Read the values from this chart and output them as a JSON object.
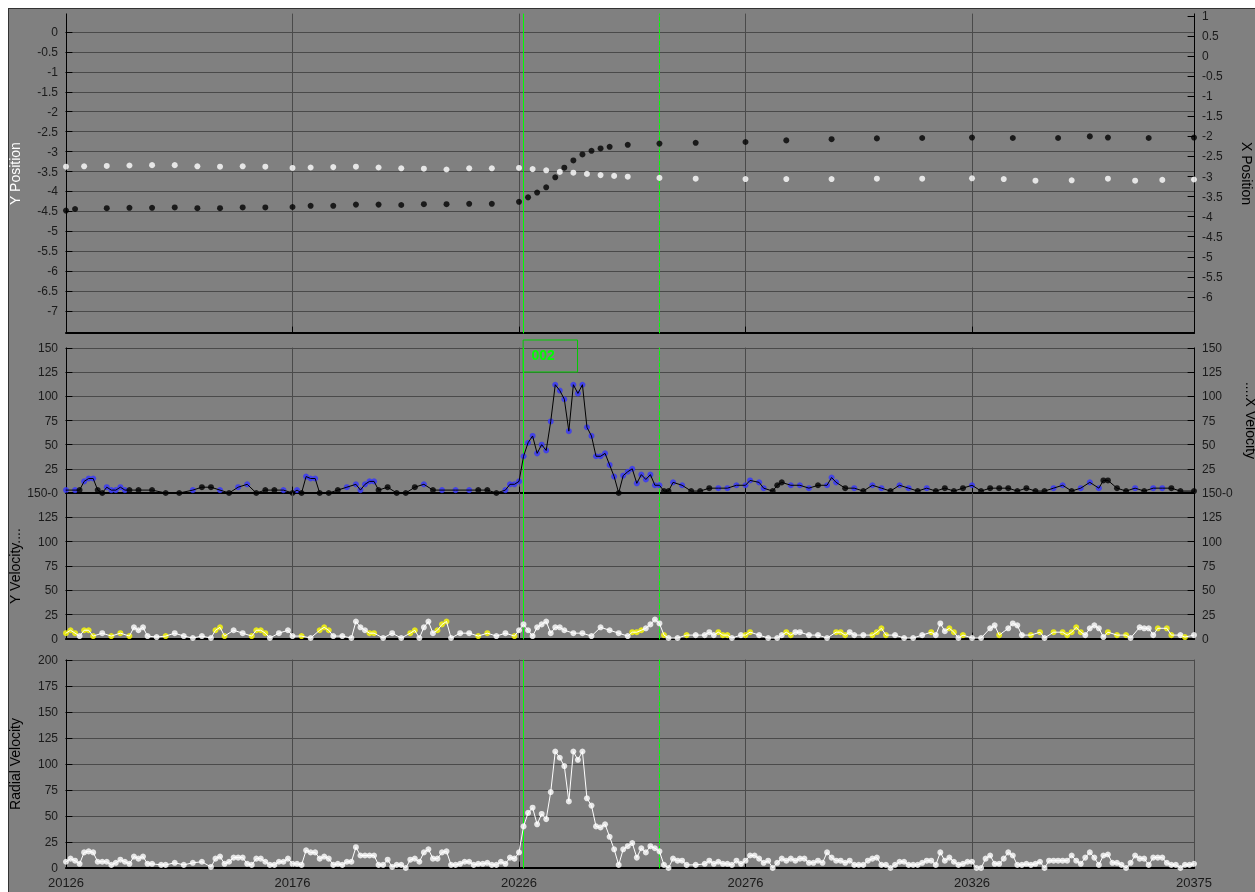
{
  "chart_data": [
    {
      "type": "scatter",
      "ylabel": "Y Position",
      "y2label": "X Position",
      "xlim": [
        20126,
        20375
      ],
      "xticks": [
        20126,
        20176,
        20226,
        20276,
        20326,
        20375
      ],
      "ylim": [
        -7.55,
        0.45
      ],
      "yticks": [
        0,
        -0.5,
        -1,
        -1.5,
        -2,
        -2.5,
        -3,
        -3.5,
        -4,
        -4.5,
        -5,
        -5.5,
        -6,
        -6.5,
        -7
      ],
      "y2lim": [
        -6.9,
        1.05
      ],
      "y2ticks": [
        1,
        0.5,
        0,
        -0.5,
        -1,
        -1.5,
        -2,
        -2.5,
        -3,
        -3.5,
        -4,
        -4.5,
        -5,
        -5.5,
        -6
      ],
      "grid": true,
      "marker": "circle",
      "tick_labels": "y",
      "series": [
        {
          "color": "#ffffff",
          "axis": "y",
          "x": [
            20126,
            20130,
            20135,
            20140,
            20145,
            20150,
            20155,
            20160,
            20165,
            20170,
            20176,
            20180,
            20185,
            20190,
            20195,
            20200,
            20205,
            20210,
            20215,
            20220,
            20226,
            20229,
            20232,
            20235,
            20238,
            20241,
            20244,
            20247,
            20250,
            20257,
            20265,
            20276,
            20285,
            20295,
            20305,
            20315,
            20326,
            20333,
            20340,
            20348,
            20356,
            20362,
            20368,
            20375
          ],
          "values": [
            -3.38,
            -3.37,
            -3.36,
            -3.35,
            -3.34,
            -3.34,
            -3.37,
            -3.38,
            -3.37,
            -3.38,
            -3.41,
            -3.4,
            -3.39,
            -3.38,
            -3.4,
            -3.42,
            -3.43,
            -3.45,
            -3.42,
            -3.42,
            -3.41,
            -3.44,
            -3.47,
            -3.51,
            -3.53,
            -3.56,
            -3.59,
            -3.61,
            -3.63,
            -3.66,
            -3.68,
            -3.69,
            -3.69,
            -3.69,
            -3.68,
            -3.68,
            -3.67,
            -3.69,
            -3.73,
            -3.72,
            -3.68,
            -3.73,
            -3.71,
            -3.7
          ]
        },
        {
          "color": "#000000",
          "axis": "y2",
          "x": [
            20126,
            20128,
            20135,
            20140,
            20145,
            20150,
            20155,
            20160,
            20165,
            20170,
            20176,
            20180,
            20185,
            20190,
            20195,
            20200,
            20205,
            20210,
            20215,
            20220,
            20226,
            20228,
            20230,
            20232,
            20234,
            20236,
            20238,
            20240,
            20242,
            20244,
            20246,
            20250,
            20257,
            20265,
            20276,
            20285,
            20295,
            20305,
            20315,
            20326,
            20335,
            20345,
            20352,
            20356,
            20365,
            20375
          ],
          "values": [
            -3.85,
            -3.81,
            -3.79,
            -3.78,
            -3.78,
            -3.77,
            -3.79,
            -3.79,
            -3.77,
            -3.77,
            -3.76,
            -3.73,
            -3.73,
            -3.7,
            -3.7,
            -3.71,
            -3.69,
            -3.69,
            -3.68,
            -3.68,
            -3.63,
            -3.52,
            -3.4,
            -3.27,
            -3.02,
            -2.78,
            -2.6,
            -2.45,
            -2.36,
            -2.3,
            -2.26,
            -2.21,
            -2.18,
            -2.16,
            -2.14,
            -2.1,
            -2.07,
            -2.05,
            -2.04,
            -2.03,
            -2.04,
            -2.04,
            -2,
            -2.03,
            -2.04,
            -2.03
          ]
        }
      ],
      "ref_lines": [
        {
          "axis": "x",
          "value": 20227,
          "color": "#00ff00",
          "line_style": "solid"
        },
        {
          "axis": "x",
          "value": 20257,
          "color": "#00ff00",
          "line_style": "dashed"
        }
      ]
    },
    {
      "type": "line",
      "y2label": "....X Velocity",
      "xlim": [
        20126,
        20375
      ],
      "xticks": [
        20126,
        20176,
        20226,
        20276,
        20326,
        20375
      ],
      "ylim": [
        0,
        150
      ],
      "yticks": [
        {
          "value": 0,
          "label": "150-0"
        },
        25,
        50,
        75,
        100,
        125,
        150
      ],
      "y2lim": [
        0,
        150
      ],
      "y2ticks": [
        {
          "value": 0,
          "label": "150-0"
        },
        25,
        50,
        75,
        100,
        125,
        150
      ],
      "grid": true,
      "marker": "circle",
      "line_style": "solid",
      "tick_labels": "y",
      "annotations": [
        {
          "text": "002",
          "x": 20227,
          "y": 150
        }
      ],
      "series": [
        {
          "color": "#000000",
          "axis": "y2",
          "x": [
            20126,
            20128,
            20129,
            20130,
            20131,
            20132,
            20133,
            20134,
            20135,
            20136,
            20137,
            20138,
            20139,
            20140,
            20142,
            20145,
            20148,
            20151,
            20154,
            20156,
            20158,
            20160,
            20162,
            20164,
            20166,
            20168,
            20170,
            20172,
            20174,
            20176,
            20177,
            20178,
            20179,
            20180,
            20181,
            20182,
            20184,
            20186,
            20188,
            20190,
            20191,
            20192,
            20193,
            20194,
            20195,
            20197,
            20199,
            20201,
            20203,
            20205,
            20207,
            20209,
            20212,
            20215,
            20217,
            20219,
            20221,
            20223,
            20224,
            20225,
            20226,
            20227,
            20228,
            20229,
            20230,
            20231,
            20232,
            20233,
            20234,
            20235,
            20236,
            20237,
            20238,
            20239,
            20240,
            20241,
            20242,
            20243,
            20244,
            20245,
            20246,
            20247,
            20248,
            20249,
            20250,
            20251,
            20252,
            20253,
            20254,
            20255,
            20256,
            20257,
            20258,
            20259,
            20260,
            20262,
            20264,
            20266,
            20268,
            20270,
            20272,
            20274,
            20276,
            20277,
            20279,
            20280,
            20282,
            20283,
            20284,
            20286,
            20288,
            20290,
            20292,
            20294,
            20295,
            20296,
            20298,
            20300,
            20302,
            20304,
            20306,
            20308,
            20310,
            20312,
            20314,
            20316,
            20318,
            20320,
            20322,
            20324,
            20326,
            20328,
            20330,
            20332,
            20334,
            20336,
            20338,
            20340,
            20342,
            20344,
            20346,
            20348,
            20350,
            20352,
            20354,
            20355,
            20356,
            20358,
            20360,
            20362,
            20364,
            20366,
            20368,
            20370,
            20372,
            20375
          ],
          "values": [
            3,
            3,
            3,
            12,
            15,
            15,
            3,
            0,
            6,
            3,
            3,
            6,
            3,
            3,
            3,
            3,
            0,
            0,
            3,
            6,
            6,
            3,
            0,
            6,
            9,
            0,
            3,
            3,
            3,
            0,
            3,
            0,
            17,
            15,
            15,
            0,
            0,
            3,
            6,
            9,
            3,
            9,
            12,
            12,
            3,
            6,
            0,
            0,
            6,
            9,
            3,
            3,
            3,
            3,
            3,
            3,
            0,
            3,
            9,
            9,
            12,
            38,
            52,
            59,
            41,
            50,
            44,
            74,
            112,
            106,
            97,
            64,
            112,
            103,
            112,
            68,
            59,
            38,
            38,
            41,
            29,
            17,
            0,
            18,
            22,
            25,
            10,
            19,
            14,
            19,
            8,
            8,
            2,
            2,
            11,
            8,
            2,
            2,
            5,
            5,
            5,
            8,
            8,
            13,
            11,
            5,
            2,
            8,
            11,
            8,
            8,
            5,
            8,
            8,
            16,
            11,
            5,
            5,
            2,
            8,
            5,
            2,
            8,
            5,
            2,
            5,
            2,
            5,
            2,
            5,
            8,
            2,
            5,
            5,
            5,
            2,
            5,
            2,
            2,
            5,
            8,
            2,
            5,
            11,
            5,
            13,
            13,
            5,
            2,
            5,
            2,
            5,
            5,
            5,
            2,
            2
          ],
          "colors": [
            "#3333ff",
            "#3333ff",
            "#000000",
            "#3333ff",
            "#3333ff",
            "#3333ff",
            "#000000",
            "#000000",
            "#3333ff",
            "#3333ff",
            "#3333ff",
            "#3333ff",
            "#3333ff",
            "#000000",
            "#000000",
            "#000000",
            "#000000",
            "#000000",
            "#3333ff",
            "#000000",
            "#000000",
            "#3333ff",
            "#000000",
            "#3333ff",
            "#3333ff",
            "#000000",
            "#000000",
            "#000000",
            "#3333ff",
            "#000000",
            "#3333ff",
            "#000000",
            "#3333ff",
            "#3333ff",
            "#3333ff",
            "#000000",
            "#000000",
            "#000000",
            "#3333ff",
            "#3333ff",
            "#3333ff",
            "#3333ff",
            "#3333ff",
            "#3333ff",
            "#000000",
            "#000000",
            "#000000",
            "#000000",
            "#000000",
            "#3333ff",
            "#000000",
            "#3333ff",
            "#3333ff",
            "#3333ff",
            "#000000",
            "#000000",
            "#000000",
            "#3333ff",
            "#3333ff",
            "#3333ff",
            "#3333ff",
            "#3333ff",
            "#3333ff",
            "#3333ff",
            "#3333ff",
            "#3333ff",
            "#3333ff",
            "#3333ff",
            "#3333ff",
            "#3333ff",
            "#3333ff",
            "#3333ff",
            "#3333ff",
            "#3333ff",
            "#3333ff",
            "#3333ff",
            "#3333ff",
            "#3333ff",
            "#3333ff",
            "#3333ff",
            "#3333ff",
            "#3333ff",
            "#000000",
            "#3333ff",
            "#3333ff",
            "#3333ff",
            "#3333ff",
            "#3333ff",
            "#3333ff",
            "#3333ff",
            "#3333ff",
            "#3333ff",
            "#000000",
            "#000000",
            "#3333ff",
            "#3333ff",
            "#000000",
            "#000000",
            "#000000",
            "#3333ff",
            "#3333ff",
            "#3333ff",
            "#3333ff",
            "#3333ff",
            "#3333ff",
            "#3333ff",
            "#000000",
            "#000000",
            "#000000",
            "#3333ff",
            "#3333ff",
            "#3333ff",
            "#000000",
            "#3333ff",
            "#3333ff",
            "#3333ff",
            "#000000",
            "#3333ff",
            "#000000",
            "#3333ff",
            "#3333ff",
            "#000000",
            "#3333ff",
            "#3333ff",
            "#000000",
            "#3333ff",
            "#000000",
            "#000000",
            "#000000",
            "#000000",
            "#3333ff",
            "#000000",
            "#000000",
            "#000000",
            "#000000",
            "#000000",
            "#000000",
            "#000000",
            "#000000",
            "#3333ff",
            "#3333ff",
            "#000000",
            "#3333ff",
            "#3333ff",
            "#3333ff",
            "#000000",
            "#000000",
            "#000000",
            "#000000",
            "#3333ff",
            "#000000",
            "#3333ff",
            "#3333ff",
            "#000000",
            "#000000",
            "#000000"
          ]
        }
      ],
      "ref_lines": [
        {
          "axis": "x",
          "value": 20227,
          "color": "#00ff00",
          "line_style": "solid"
        },
        {
          "axis": "x",
          "value": 20257,
          "color": "#00ff00",
          "line_style": "dashed"
        }
      ]
    },
    {
      "type": "line",
      "ylabel": "Y Velocity....",
      "xlim": [
        20126,
        20375
      ],
      "xticks": [
        20126,
        20176,
        20226,
        20276,
        20326,
        20375
      ],
      "ylim": [
        0,
        150
      ],
      "yticks": [
        0,
        25,
        50,
        75,
        100,
        125
      ],
      "y2lim": [
        0,
        150
      ],
      "y2ticks": [
        0,
        25,
        50,
        75,
        100,
        125
      ],
      "grid": true,
      "marker": "circle",
      "line_style": "solid",
      "tick_labels": "y",
      "series": [
        {
          "color": "#ffffff",
          "axis": "y",
          "x": [
            20126,
            20127,
            20128,
            20129,
            20130,
            20131,
            20132,
            20134,
            20136,
            20138,
            20140,
            20141,
            20142,
            20143,
            20144,
            20146,
            20148,
            20150,
            20152,
            20154,
            20156,
            20158,
            20159,
            20160,
            20161,
            20163,
            20165,
            20167,
            20168,
            20169,
            20170,
            20171,
            20173,
            20175,
            20176,
            20178,
            20180,
            20182,
            20183,
            20184,
            20185,
            20187,
            20189,
            20190,
            20191,
            20192,
            20193,
            20194,
            20196,
            20198,
            20200,
            20202,
            20203,
            20204,
            20205,
            20206,
            20207,
            20208,
            20209,
            20210,
            20211,
            20213,
            20215,
            20217,
            20219,
            20221,
            20223,
            20225,
            20226,
            20227,
            20228,
            20229,
            20230,
            20231,
            20232,
            20233,
            20234,
            20235,
            20236,
            20238,
            20240,
            20242,
            20244,
            20246,
            20248,
            20250,
            20251,
            20252,
            20253,
            20254,
            20255,
            20256,
            20257,
            20258,
            20259,
            20261,
            20263,
            20265,
            20267,
            20268,
            20269,
            20270,
            20271,
            20272,
            20273,
            20275,
            20276,
            20277,
            20279,
            20281,
            20283,
            20284,
            20285,
            20286,
            20287,
            20288,
            20290,
            20292,
            20294,
            20296,
            20297,
            20298,
            20299,
            20300,
            20302,
            20304,
            20305,
            20306,
            20307,
            20309,
            20311,
            20313,
            20315,
            20317,
            20318,
            20319,
            20320,
            20321,
            20322,
            20323,
            20324,
            20326,
            20328,
            20330,
            20331,
            20332,
            20334,
            20335,
            20336,
            20337,
            20339,
            20341,
            20342,
            20344,
            20346,
            20347,
            20348,
            20349,
            20350,
            20351,
            20352,
            20353,
            20354,
            20355,
            20356,
            20358,
            20360,
            20361,
            20363,
            20364,
            20365,
            20366,
            20367,
            20369,
            20370,
            20372,
            20373,
            20375
          ],
          "values": [
            6,
            9,
            6,
            3,
            9,
            9,
            3,
            6,
            3,
            6,
            3,
            12,
            9,
            12,
            3,
            2,
            3,
            6,
            3,
            1,
            3,
            1,
            9,
            12,
            3,
            9,
            6,
            3,
            9,
            9,
            6,
            1,
            6,
            9,
            3,
            3,
            1,
            9,
            12,
            9,
            3,
            3,
            1,
            18,
            12,
            9,
            6,
            6,
            1,
            6,
            1,
            6,
            9,
            1,
            12,
            18,
            6,
            9,
            15,
            18,
            1,
            6,
            6,
            3,
            6,
            3,
            6,
            3,
            9,
            15,
            9,
            3,
            12,
            15,
            18,
            6,
            12,
            12,
            9,
            6,
            6,
            3,
            12,
            9,
            6,
            3,
            7,
            7,
            9,
            11,
            15,
            20,
            16,
            4,
            1,
            1,
            4,
            4,
            4,
            7,
            4,
            7,
            4,
            4,
            1,
            4,
            4,
            7,
            4,
            1,
            1,
            4,
            7,
            4,
            7,
            7,
            4,
            4,
            1,
            7,
            7,
            4,
            7,
            4,
            4,
            4,
            7,
            11,
            4,
            4,
            1,
            1,
            4,
            7,
            4,
            16,
            8,
            11,
            7,
            1,
            4,
            1,
            1,
            11,
            14,
            4,
            11,
            16,
            14,
            4,
            4,
            7,
            1,
            7,
            7,
            4,
            7,
            12,
            7,
            4,
            11,
            14,
            11,
            2,
            7,
            4,
            4,
            1,
            12,
            11,
            11,
            4,
            11,
            11,
            4,
            4,
            2,
            4
          ],
          "colors": [
            "#ffff00",
            "#ffff00",
            "#ffff00",
            "#ffffff",
            "#ffff00",
            "#ffff00",
            "#ffff00",
            "#ffffff",
            "#ffff00",
            "#ffff00",
            "#ffff00",
            "#ffffff",
            "#ffffff",
            "#ffffff",
            "#ffffff",
            "#ffffff",
            "#ffff00",
            "#ffffff",
            "#ffffff",
            "#ffffff",
            "#ffffff",
            "#ffffff",
            "#ffff00",
            "#ffff00",
            "#ffff00",
            "#ffffff",
            "#ffffff",
            "#ffff00",
            "#ffff00",
            "#ffff00",
            "#ffff00",
            "#ffffff",
            "#ffffff",
            "#ffffff",
            "#ffffff",
            "#ffff00",
            "#ffffff",
            "#ffff00",
            "#ffff00",
            "#ffff00",
            "#ffffff",
            "#ffffff",
            "#ffffff",
            "#ffffff",
            "#ffffff",
            "#ffffff",
            "#ffff00",
            "#ffff00",
            "#ffffff",
            "#ffffff",
            "#ffffff",
            "#ffff00",
            "#ffff00",
            "#ffffff",
            "#ffffff",
            "#ffffff",
            "#ffffff",
            "#ffff00",
            "#ffff00",
            "#ffff00",
            "#ffffff",
            "#ffffff",
            "#ffffff",
            "#ffff00",
            "#ffff00",
            "#ffffff",
            "#ffffff",
            "#ffff00",
            "#ffffff",
            "#ffffff",
            "#ffffff",
            "#ffffff",
            "#ffffff",
            "#ffffff",
            "#ffffff",
            "#ffffff",
            "#ffffff",
            "#ffffff",
            "#ffffff",
            "#ffffff",
            "#ffffff",
            "#ffffff",
            "#ffffff",
            "#ffffff",
            "#ffffff",
            "#ffffff",
            "#ffff00",
            "#ffff00",
            "#ffff00",
            "#ffffff",
            "#ffffff",
            "#ffffff",
            "#ffffff",
            "#ffff00",
            "#ffffff",
            "#ffffff",
            "#ffff00",
            "#ffffff",
            "#ffffff",
            "#ffffff",
            "#ffffff",
            "#ffff00",
            "#ffff00",
            "#ffff00",
            "#ffffff",
            "#ffffff",
            "#ffff00",
            "#ffff00",
            "#ffffff",
            "#ffffff",
            "#ffffff",
            "#ffffff",
            "#ffff00",
            "#ffff00",
            "#ffffff",
            "#ffffff",
            "#ffffff",
            "#ffffff",
            "#ffffff",
            "#ffff00",
            "#ffff00",
            "#ffff00",
            "#ffffff",
            "#ffffff",
            "#ffffff",
            "#ffff00",
            "#ffff00",
            "#ffff00",
            "#ffff00",
            "#ffffff",
            "#ffffff",
            "#ffffff",
            "#ffffff",
            "#ffff00",
            "#ffffff",
            "#ffffff",
            "#ffffff",
            "#ffff00",
            "#ffff00",
            "#ffffff",
            "#ffff00",
            "#ffffff",
            "#ffffff",
            "#ffffff",
            "#ffffff",
            "#ffff00",
            "#ffffff",
            "#ffffff",
            "#ffffff",
            "#ffffff",
            "#ffff00",
            "#ffff00",
            "#ffffff",
            "#ffff00",
            "#ffff00",
            "#ffff00",
            "#ffff00",
            "#ffff00",
            "#ffff00",
            "#ffffff",
            "#ffffff",
            "#ffffff",
            "#ffffff",
            "#ffffff",
            "#ffff00",
            "#ffff00",
            "#ffff00",
            "#ffffff",
            "#ffffff",
            "#ffffff",
            "#ffffff",
            "#ffffff",
            "#ffff00",
            "#ffff00",
            "#ffff00",
            "#ffffff",
            "#ffff00",
            "#ffffff"
          ]
        }
      ],
      "ref_lines": [
        {
          "axis": "x",
          "value": 20227,
          "color": "#00ff00",
          "line_style": "solid"
        },
        {
          "axis": "x",
          "value": 20257,
          "color": "#00ff00",
          "line_style": "dashed"
        }
      ]
    },
    {
      "type": "line",
      "ylabel": "Radial Velocity",
      "xlim": [
        20126,
        20375
      ],
      "xticks": [
        20126,
        20176,
        20226,
        20276,
        20326,
        20375
      ],
      "ylim": [
        0,
        200
      ],
      "yticks": [
        0,
        25,
        50,
        75,
        100,
        125,
        150,
        175,
        200
      ],
      "grid": true,
      "marker": "circle",
      "line_style": "solid",
      "series": [
        {
          "color": "#ffffff",
          "axis": "y",
          "x": [
            20126,
            20127,
            20128,
            20129,
            20130,
            20131,
            20132,
            20133,
            20134,
            20135,
            20136,
            20137,
            20138,
            20139,
            20140,
            20141,
            20142,
            20143,
            20144,
            20145,
            20147,
            20148,
            20150,
            20152,
            20154,
            20156,
            20158,
            20159,
            20160,
            20161,
            20162,
            20163,
            20164,
            20165,
            20166,
            20167,
            20168,
            20169,
            20170,
            20171,
            20172,
            20173,
            20174,
            20175,
            20176,
            20177,
            20178,
            20179,
            20180,
            20181,
            20182,
            20183,
            20184,
            20185,
            20186,
            20187,
            20188,
            20189,
            20190,
            20191,
            20192,
            20193,
            20194,
            20195,
            20196,
            20197,
            20198,
            20199,
            20200,
            20201,
            20202,
            20203,
            20204,
            20205,
            20206,
            20207,
            20208,
            20209,
            20210,
            20211,
            20212,
            20213,
            20214,
            20215,
            20216,
            20217,
            20218,
            20219,
            20220,
            20221,
            20222,
            20223,
            20224,
            20225,
            20226,
            20227,
            20228,
            20229,
            20230,
            20231,
            20232,
            20233,
            20234,
            20235,
            20236,
            20237,
            20238,
            20239,
            20240,
            20241,
            20242,
            20243,
            20244,
            20245,
            20246,
            20247,
            20248,
            20249,
            20250,
            20251,
            20252,
            20253,
            20254,
            20255,
            20256,
            20257,
            20258,
            20259,
            20260,
            20261,
            20262,
            20263,
            20265,
            20267,
            20268,
            20269,
            20270,
            20271,
            20272,
            20273,
            20274,
            20275,
            20276,
            20277,
            20278,
            20279,
            20280,
            20281,
            20282,
            20283,
            20284,
            20285,
            20286,
            20287,
            20288,
            20289,
            20290,
            20291,
            20292,
            20293,
            20294,
            20295,
            20296,
            20297,
            20298,
            20299,
            20300,
            20301,
            20302,
            20303,
            20304,
            20305,
            20306,
            20307,
            20308,
            20309,
            20310,
            20311,
            20312,
            20313,
            20314,
            20315,
            20316,
            20317,
            20318,
            20319,
            20320,
            20321,
            20322,
            20323,
            20324,
            20325,
            20326,
            20327,
            20328,
            20329,
            20330,
            20331,
            20332,
            20333,
            20334,
            20335,
            20336,
            20337,
            20338,
            20339,
            20340,
            20341,
            20342,
            20343,
            20344,
            20345,
            20346,
            20347,
            20348,
            20349,
            20350,
            20351,
            20352,
            20353,
            20354,
            20355,
            20356,
            20357,
            20358,
            20359,
            20360,
            20361,
            20362,
            20363,
            20364,
            20365,
            20366,
            20367,
            20368,
            20369,
            20370,
            20371,
            20372,
            20373,
            20374,
            20375
          ],
          "values": [
            6,
            9,
            7,
            4,
            15,
            16,
            15,
            6,
            6,
            6,
            3,
            5,
            8,
            6,
            4,
            11,
            9,
            11,
            4,
            4,
            3,
            3,
            5,
            3,
            5,
            6,
            1,
            9,
            11,
            4,
            6,
            10,
            10,
            10,
            4,
            3,
            9,
            9,
            6,
            3,
            3,
            6,
            6,
            9,
            4,
            4,
            3,
            17,
            15,
            15,
            9,
            11,
            9,
            3,
            4,
            3,
            6,
            6,
            20,
            12,
            12,
            12,
            12,
            3,
            3,
            8,
            1,
            3,
            3,
            0,
            8,
            9,
            6,
            15,
            18,
            9,
            9,
            15,
            16,
            3,
            3,
            4,
            6,
            6,
            3,
            4,
            4,
            5,
            3,
            3,
            6,
            4,
            10,
            9,
            15,
            40,
            53,
            58,
            42,
            52,
            47,
            73,
            112,
            106,
            98,
            64,
            112,
            104,
            112,
            67,
            60,
            40,
            39,
            42,
            30,
            18,
            3,
            18,
            21,
            24,
            10,
            19,
            15,
            21,
            19,
            16,
            3,
            0,
            9,
            7,
            7,
            3,
            3,
            4,
            7,
            4,
            6,
            4,
            4,
            3,
            7,
            4,
            7,
            12,
            12,
            9,
            5,
            7,
            0,
            5,
            9,
            7,
            9,
            7,
            9,
            9,
            5,
            5,
            7,
            5,
            15,
            10,
            7,
            7,
            5,
            7,
            3,
            3,
            3,
            7,
            9,
            10,
            3,
            3,
            0,
            3,
            6,
            6,
            3,
            3,
            3,
            5,
            7,
            7,
            3,
            15,
            7,
            10,
            6,
            3,
            4,
            6,
            6,
            0,
            0,
            9,
            12,
            4,
            4,
            9,
            15,
            12,
            3,
            3,
            4,
            3,
            4,
            6,
            0,
            7,
            7,
            7,
            7,
            7,
            12,
            7,
            4,
            10,
            15,
            10,
            3,
            12,
            13,
            5,
            5,
            3,
            0,
            5,
            12,
            9,
            9,
            3,
            10,
            10,
            10,
            5,
            3,
            3,
            0,
            3,
            3,
            4
          ]
        }
      ],
      "ref_lines": [
        {
          "axis": "x",
          "value": 20227,
          "color": "#00ff00",
          "line_style": "solid"
        },
        {
          "axis": "x",
          "value": 20257,
          "color": "#00ff00",
          "line_style": "dashed"
        }
      ]
    }
  ]
}
